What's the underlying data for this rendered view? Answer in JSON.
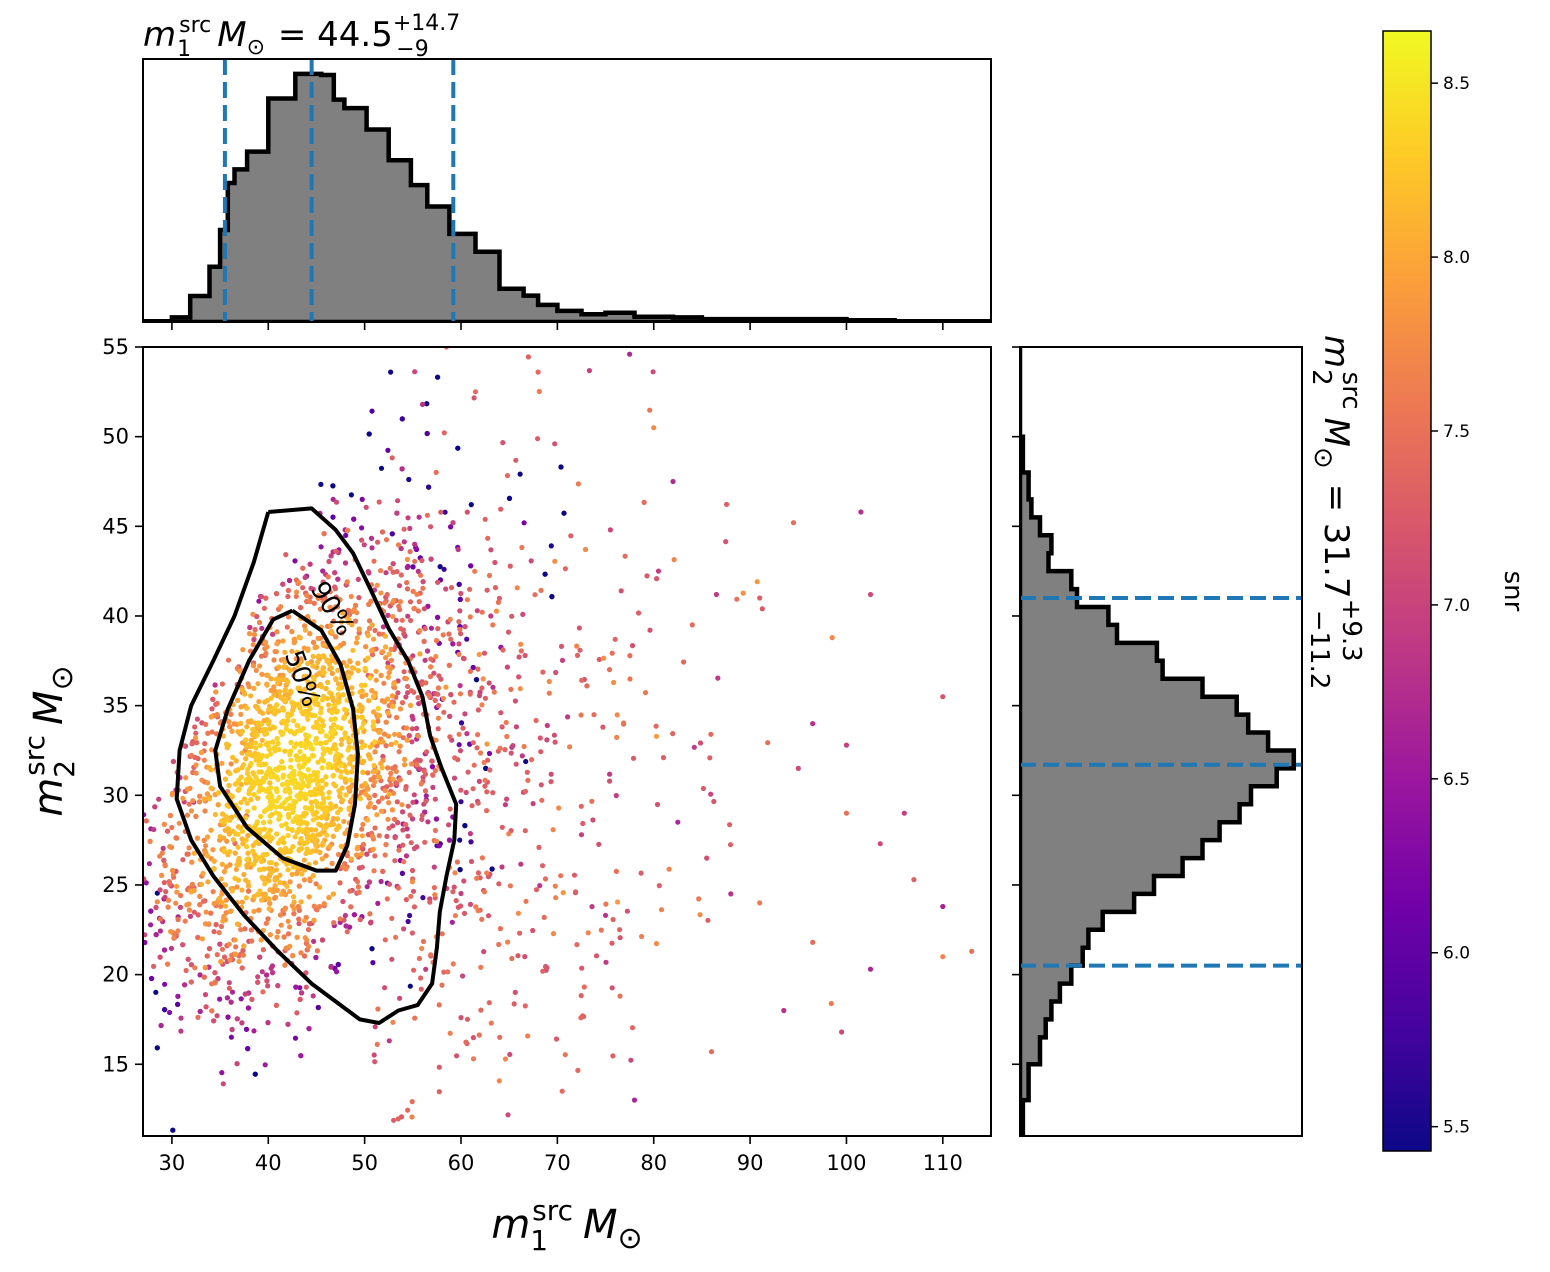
{
  "chart_data": {
    "type": "scatter",
    "subtype": "corner plot: 2D posterior scatter with marginal histograms",
    "scatter": {
      "xlabel": "m_1^src M_⊙",
      "ylabel": "m_2^src M_⊙",
      "xlim": [
        27,
        115
      ],
      "ylim": [
        11,
        55
      ],
      "xticks": [
        30,
        40,
        50,
        60,
        70,
        80,
        90,
        100,
        110
      ],
      "yticks": [
        15,
        20,
        25,
        30,
        35,
        40,
        45,
        50,
        55
      ],
      "grid": false,
      "color_by": "snr",
      "dense_core": {
        "x_center": 42,
        "y_center": 31
      },
      "outlier_points": [
        [
          58.5,
          55
        ],
        [
          77.5,
          54.6
        ],
        [
          68,
          53.6
        ],
        [
          61.5,
          52.5
        ],
        [
          56,
          51.8
        ],
        [
          80,
          50.5
        ],
        [
          101.5,
          45.8
        ],
        [
          94.5,
          45.2
        ],
        [
          82,
          47.5
        ],
        [
          75.5,
          44.8
        ],
        [
          80.5,
          42.5
        ],
        [
          102.5,
          41.2
        ],
        [
          91,
          41.0
        ],
        [
          86.5,
          41.2
        ],
        [
          84,
          39.5
        ],
        [
          76,
          38.7
        ],
        [
          110,
          35.5
        ],
        [
          96.5,
          34.0
        ],
        [
          100,
          32.8
        ],
        [
          95,
          31.5
        ],
        [
          100,
          29.0
        ],
        [
          106,
          29.0
        ],
        [
          103.5,
          27.3
        ],
        [
          113,
          21.3
        ],
        [
          110,
          21.0
        ],
        [
          96.5,
          21.8
        ],
        [
          102.5,
          20.3
        ],
        [
          99.5,
          16.8
        ],
        [
          86,
          15.7
        ],
        [
          78,
          13.0
        ],
        [
          70.5,
          13.5
        ],
        [
          91,
          24.0
        ],
        [
          85.5,
          26.5
        ],
        [
          82.5,
          28.5
        ],
        [
          88,
          24.5
        ],
        [
          75,
          23.3
        ],
        [
          72.5,
          27.8
        ],
        [
          107,
          25.3
        ],
        [
          110,
          23.8
        ],
        [
          93.5,
          18.0
        ]
      ]
    },
    "contours": [
      {
        "label": "90%",
        "points": [
          [
            40,
            45.8
          ],
          [
            44.5,
            46.0
          ],
          [
            47,
            44.8
          ],
          [
            48.8,
            43.5
          ],
          [
            50.6,
            41.5
          ],
          [
            52.5,
            39.3
          ],
          [
            54.5,
            37.5
          ],
          [
            56,
            35.5
          ],
          [
            56.8,
            33.3
          ],
          [
            58,
            31.5
          ],
          [
            59.5,
            29.5
          ],
          [
            59.3,
            27.5
          ],
          [
            58.5,
            25.5
          ],
          [
            57.8,
            23.5
          ],
          [
            57.5,
            21.5
          ],
          [
            57,
            19.5
          ],
          [
            55.5,
            18.3
          ],
          [
            53.5,
            18.0
          ],
          [
            51.5,
            17.3
          ],
          [
            49.5,
            17.5
          ],
          [
            47,
            18.5
          ],
          [
            44.5,
            19.5
          ],
          [
            41,
            21.3
          ],
          [
            37.5,
            23.3
          ],
          [
            34.3,
            25.5
          ],
          [
            32,
            27.5
          ],
          [
            30.5,
            29.8
          ],
          [
            30.8,
            32.5
          ],
          [
            32,
            35.0
          ],
          [
            34.3,
            37.5
          ],
          [
            36.5,
            40.0
          ],
          [
            38.5,
            43.0
          ],
          [
            40,
            45.8
          ]
        ],
        "label_at": [
          46.6,
          40.4
        ]
      },
      {
        "label": "50%",
        "points": [
          [
            42.5,
            40.3
          ],
          [
            45.5,
            39.2
          ],
          [
            47.5,
            37.3
          ],
          [
            48.8,
            34.8
          ],
          [
            49.3,
            32.3
          ],
          [
            49,
            29.5
          ],
          [
            48.2,
            27.2
          ],
          [
            47,
            25.8
          ],
          [
            45,
            25.8
          ],
          [
            41.5,
            26.5
          ],
          [
            37.8,
            28.2
          ],
          [
            35,
            30.5
          ],
          [
            34.5,
            32.5
          ],
          [
            35.8,
            34.8
          ],
          [
            38,
            37.5
          ],
          [
            40.5,
            39.8
          ],
          [
            42.5,
            40.3
          ]
        ],
        "label_at": [
          43.5,
          36.5
        ]
      }
    ],
    "top_marginal": {
      "title": "m_1^src M_⊙ = 44.5^{+14.7}_{-9}",
      "value": 44.5,
      "plus": 14.7,
      "minus": 9,
      "quantile_lines": [
        35.5,
        44.5,
        59.2
      ],
      "xlim": [
        27,
        115
      ],
      "xticks": [
        30,
        40,
        50,
        60,
        70,
        80,
        90,
        100,
        110
      ],
      "bin_edges": [
        27,
        30.0,
        31.9,
        33.9,
        35.0,
        35.8,
        36.5,
        37.8,
        40.0,
        42.8,
        45.5,
        46.8,
        47.9,
        50.2,
        52.5,
        54.8,
        56.5,
        58.8,
        61.5,
        64,
        66.5,
        68,
        70,
        72.5,
        75,
        78,
        82,
        85,
        100,
        105,
        115
      ],
      "heights": [
        0.2,
        1.3,
        7.3,
        15.5,
        25.8,
        39.0,
        42.8,
        47.8,
        62.7,
        69.6,
        69.3,
        62.4,
        60.0,
        54.0,
        45.4,
        38.4,
        32.4,
        24.7,
        19.7,
        9.3,
        7.4,
        4.8,
        3.1,
        2.2,
        2.6,
        1.5,
        1.3,
        0.8,
        0.5,
        0.2
      ]
    },
    "right_marginal": {
      "title": "m_2^src M_⊙ = 31.7^{+9.3}_{-11.2}",
      "value": 31.7,
      "plus": 9.3,
      "minus": 11.2,
      "quantile_lines": [
        20.5,
        31.7,
        41.0
      ],
      "ylim": [
        11,
        55
      ],
      "yticks": [
        15,
        20,
        25,
        30,
        35,
        40,
        45,
        50,
        55
      ],
      "bin_edges": [
        11,
        13,
        15,
        16.5,
        17.5,
        18.5,
        19.5,
        20.5,
        21.5,
        22.5,
        23.5,
        24.5,
        25.5,
        26.5,
        27.5,
        28.5,
        29.5,
        30.5,
        31.5,
        32.5,
        33.5,
        34.5,
        35.5,
        36.5,
        37.5,
        38.5,
        39.5,
        40.5,
        41.5,
        42.5,
        43.5,
        44.5,
        45.5,
        46.5,
        48,
        50,
        55
      ],
      "heights": [
        1,
        3,
        7,
        9,
        11,
        14,
        18,
        22,
        24,
        29,
        40,
        47,
        57,
        64,
        70,
        77,
        81,
        90,
        96,
        87,
        80,
        76,
        64,
        50,
        48,
        34,
        31,
        20,
        18,
        10,
        11,
        7,
        4,
        3,
        1,
        0
      ]
    },
    "colorbar": {
      "label": "snr",
      "range": [
        5.43,
        8.65
      ],
      "ticks": [
        "5.5",
        "6.0",
        "6.5",
        "7.0",
        "7.5",
        "8.0",
        "8.5"
      ],
      "tick_values": [
        5.5,
        6.0,
        6.5,
        7.0,
        7.5,
        8.0,
        8.5
      ],
      "colormap": "plasma",
      "colormap_stops": [
        "#0d0887",
        "#46039f",
        "#7201a8",
        "#9c179e",
        "#bd3786",
        "#d8576b",
        "#ed7953",
        "#fb9f3a",
        "#fdca26",
        "#f0f921"
      ]
    },
    "colors": {
      "hist_fill": "#808080",
      "hist_edge": "#000000",
      "quantile_line": "#1f77b4",
      "contour": "#000000"
    }
  }
}
